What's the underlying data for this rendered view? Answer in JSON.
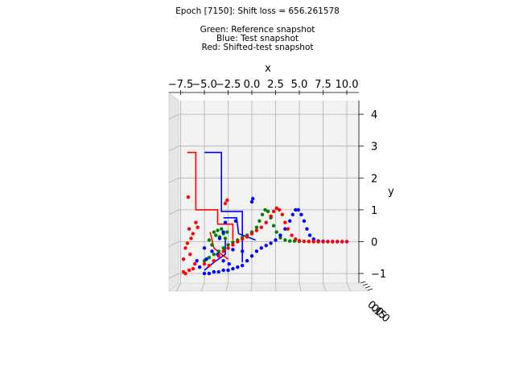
{
  "figure": {
    "title": "Epoch [7150]: Shift loss = 656.261578",
    "legend_lines": [
      "Green: Reference snapshot",
      "Blue: Test snapshot",
      "Red: Shifted-test snapshot"
    ]
  },
  "chart_data": {
    "type": "scatter",
    "projection": "3d",
    "title": "Epoch [7150]: Shift loss = 656.261578",
    "xlabel": "x",
    "ylabel": "y",
    "zlabel": "",
    "xlim": [
      -8.5,
      11.0
    ],
    "ylim": [
      -1.5,
      4.4
    ],
    "x_ticks": [
      -7.5,
      -5.0,
      -2.5,
      0.0,
      2.5,
      5.0,
      7.5,
      10.0
    ],
    "x_tick_labels": [
      "−7.5",
      "−5.0",
      "−2.5",
      "0.0",
      "2.5",
      "5.0",
      "7.5",
      "10.0"
    ],
    "y_ticks": [
      -1,
      0,
      1,
      2,
      3,
      4
    ],
    "y_tick_labels": [
      "−1",
      "0",
      "1",
      "2",
      "3",
      "4"
    ],
    "z_tick_labels": [
      "0.0",
      "0.5",
      "1.0"
    ],
    "grid": true,
    "colors": {
      "reference": "#008000",
      "test": "#0000ff",
      "shifted": "#ff0000",
      "pane": "#f2f2f2",
      "grid": "#b0b0b0"
    },
    "series": [
      {
        "name": "Green: Reference snapshot",
        "color": "#008000",
        "points": [
          [
            -5.0,
            -0.6
          ],
          [
            -4.5,
            -0.5
          ],
          [
            -4.0,
            -0.4
          ],
          [
            -3.5,
            -0.3
          ],
          [
            -3.0,
            -0.2
          ],
          [
            -2.5,
            -0.1
          ],
          [
            -2.0,
            -0.02
          ],
          [
            -1.5,
            0.05
          ],
          [
            -1.0,
            0.12
          ],
          [
            -0.5,
            0.2
          ],
          [
            0.0,
            0.3
          ],
          [
            0.5,
            0.45
          ],
          [
            0.8,
            0.65
          ],
          [
            1.1,
            0.85
          ],
          [
            1.4,
            1.0
          ],
          [
            1.7,
            0.95
          ],
          [
            2.0,
            0.75
          ],
          [
            2.3,
            0.5
          ],
          [
            2.6,
            0.3
          ],
          [
            3.0,
            0.12
          ],
          [
            3.5,
            0.05
          ],
          [
            4.0,
            0.02
          ],
          [
            4.5,
            0.02
          ],
          [
            5.0,
            0.01
          ],
          [
            5.5,
            0.01
          ],
          [
            6.0,
            0.01
          ],
          [
            6.5,
            0.01
          ],
          [
            7.0,
            0.0
          ],
          [
            7.5,
            0.0
          ],
          [
            8.0,
            0.0
          ],
          [
            8.5,
            0.0
          ],
          [
            9.0,
            0.0
          ],
          [
            -4.0,
            0.3
          ],
          [
            -3.6,
            0.35
          ],
          [
            -3.2,
            0.4
          ],
          [
            -3.8,
            0.2
          ],
          [
            -3.0,
            0.25
          ],
          [
            -2.6,
            0.3
          ],
          [
            -4.5,
            0.05
          ],
          [
            -4.2,
            -0.1
          ],
          [
            -3.4,
            0.15
          ],
          [
            -2.8,
            0.1
          ]
        ]
      },
      {
        "name": "Blue: Test snapshot",
        "color": "#0000ff",
        "points": [
          [
            -5.0,
            -1.0
          ],
          [
            -4.5,
            -1.0
          ],
          [
            -4.0,
            -0.95
          ],
          [
            -3.5,
            -0.95
          ],
          [
            -3.0,
            -0.9
          ],
          [
            -2.5,
            -0.9
          ],
          [
            -2.0,
            -0.85
          ],
          [
            -1.5,
            -0.8
          ],
          [
            -1.0,
            -0.75
          ],
          [
            -0.5,
            -0.6
          ],
          [
            0.0,
            -0.45
          ],
          [
            0.5,
            -0.3
          ],
          [
            1.0,
            -0.2
          ],
          [
            1.5,
            -0.12
          ],
          [
            2.0,
            -0.05
          ],
          [
            2.5,
            0.05
          ],
          [
            3.0,
            0.2
          ],
          [
            3.5,
            0.4
          ],
          [
            4.0,
            0.65
          ],
          [
            4.3,
            0.85
          ],
          [
            4.6,
            1.0
          ],
          [
            4.9,
            1.0
          ],
          [
            5.2,
            0.85
          ],
          [
            5.5,
            0.65
          ],
          [
            5.8,
            0.4
          ],
          [
            6.1,
            0.2
          ],
          [
            6.5,
            0.08
          ],
          [
            7.0,
            0.02
          ],
          [
            7.5,
            0.01
          ],
          [
            8.0,
            0.0
          ],
          [
            8.5,
            0.0
          ],
          [
            9.0,
            0.0
          ],
          [
            9.5,
            0.0
          ],
          [
            10.0,
            0.0
          ],
          [
            -5.5,
            -0.8
          ],
          [
            -5.8,
            -0.6
          ],
          [
            -4.8,
            -0.55
          ],
          [
            -3.0,
            -0.6
          ],
          [
            -2.4,
            -0.7
          ],
          [
            -3.6,
            -0.4
          ],
          [
            -4.2,
            -0.3
          ],
          [
            -1.0,
            -0.3
          ],
          [
            -2.0,
            -0.25
          ],
          [
            -5.0,
            -0.2
          ],
          [
            -3.4,
            0.1
          ],
          [
            -3.0,
            0.3
          ],
          [
            -2.8,
            0.6
          ],
          [
            -1.7,
            0.65
          ],
          [
            0.0,
            1.25
          ],
          [
            0.1,
            1.35
          ]
        ]
      },
      {
        "name": "Red: Shifted-test snapshot",
        "color": "#ff0000",
        "points": [
          [
            -7.2,
            -0.95
          ],
          [
            -7.0,
            -1.0
          ],
          [
            -6.6,
            -0.9
          ],
          [
            -6.2,
            -0.85
          ],
          [
            -6.0,
            -0.7
          ],
          [
            -7.2,
            -0.55
          ],
          [
            -6.5,
            -0.4
          ],
          [
            -7.0,
            -0.2
          ],
          [
            -6.8,
            -0.05
          ],
          [
            -6.4,
            0.1
          ],
          [
            -6.2,
            0.25
          ],
          [
            -6.6,
            0.4
          ],
          [
            -5.7,
            0.45
          ],
          [
            -5.9,
            0.6
          ],
          [
            -5.0,
            -0.7
          ],
          [
            -4.5,
            -0.75
          ],
          [
            -4.0,
            -0.6
          ],
          [
            -3.5,
            -0.45
          ],
          [
            -3.0,
            -0.3
          ],
          [
            -2.5,
            -0.2
          ],
          [
            -2.0,
            -0.1
          ],
          [
            -1.5,
            0.0
          ],
          [
            -1.0,
            0.08
          ],
          [
            -0.5,
            0.15
          ],
          [
            0.0,
            0.25
          ],
          [
            0.5,
            0.35
          ],
          [
            1.0,
            0.45
          ],
          [
            1.5,
            0.6
          ],
          [
            2.0,
            0.8
          ],
          [
            2.3,
            0.95
          ],
          [
            2.6,
            1.05
          ],
          [
            2.9,
            1.0
          ],
          [
            3.2,
            0.85
          ],
          [
            3.5,
            0.6
          ],
          [
            3.8,
            0.4
          ],
          [
            4.2,
            0.2
          ],
          [
            4.6,
            0.08
          ],
          [
            5.0,
            0.03
          ],
          [
            5.5,
            0.01
          ],
          [
            6.0,
            0.0
          ],
          [
            6.5,
            0.0
          ],
          [
            7.0,
            0.0
          ],
          [
            7.5,
            0.0
          ],
          [
            8.0,
            0.0
          ],
          [
            8.5,
            0.0
          ],
          [
            9.0,
            0.0
          ],
          [
            9.5,
            0.0
          ],
          [
            10.0,
            0.0
          ],
          [
            -2.8,
            1.2
          ],
          [
            -2.6,
            1.3
          ],
          [
            -6.7,
            1.4
          ]
        ]
      }
    ],
    "polylines": [
      {
        "color": "#0000ff",
        "points": [
          [
            -5.0,
            2.8
          ],
          [
            -3.2,
            2.8
          ],
          [
            -3.2,
            0.95
          ],
          [
            -1.0,
            0.95
          ],
          [
            -1.0,
            -0.65
          ]
        ]
      },
      {
        "color": "#0000ff",
        "points": [
          [
            -3.0,
            0.75
          ],
          [
            -1.6,
            0.75
          ],
          [
            -1.4,
            0.25
          ],
          [
            0.4,
            0.05
          ]
        ]
      },
      {
        "color": "#0000ff",
        "points": [
          [
            -2.8,
            0.05
          ],
          [
            -2.8,
            -0.4
          ],
          [
            -4.0,
            -0.65
          ],
          [
            -5.0,
            -0.9
          ]
        ]
      },
      {
        "color": "#ff0000",
        "points": [
          [
            -6.8,
            2.8
          ],
          [
            -5.9,
            2.8
          ],
          [
            -5.9,
            1.0
          ],
          [
            -3.6,
            1.0
          ],
          [
            -3.6,
            0.55
          ],
          [
            -2.0,
            0.55
          ],
          [
            -2.0,
            0.05
          ]
        ]
      },
      {
        "color": "#ff0000",
        "points": [
          [
            -4.4,
            0.3
          ],
          [
            -4.0,
            -0.2
          ],
          [
            -3.2,
            -0.4
          ],
          [
            -2.5,
            -0.55
          ]
        ]
      }
    ]
  }
}
